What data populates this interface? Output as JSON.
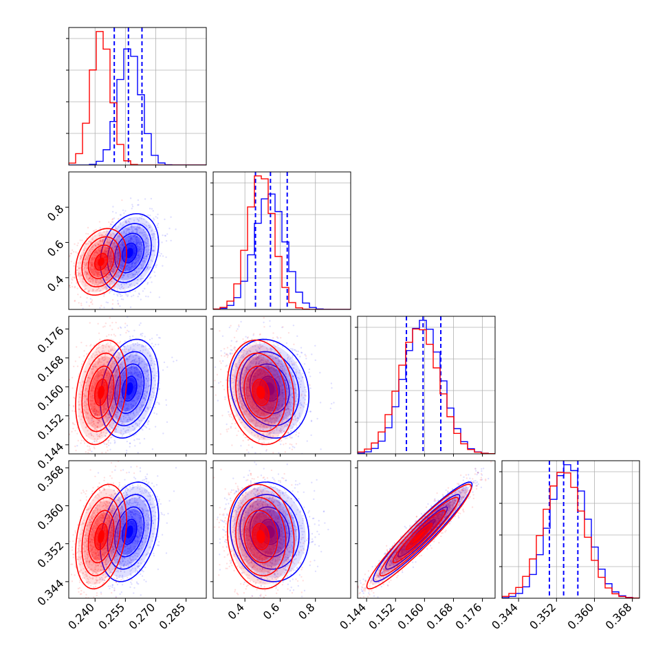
{
  "colors": {
    "series_a": "#ff0000",
    "series_b": "#0000ff",
    "grid": "#b0b0b0",
    "frame": "#000000"
  },
  "chart_data": {
    "type": "corner",
    "title": "",
    "parameters": [
      {
        "range": [
          0.227,
          0.295
        ],
        "ticks": [
          0.24,
          0.255,
          0.27,
          0.285
        ],
        "tick_labels": [
          "0.240",
          "0.255",
          "0.270",
          "0.285"
        ]
      },
      {
        "range": [
          0.22,
          1.0
        ],
        "ticks": [
          0.4,
          0.6,
          0.8
        ],
        "tick_labels": [
          "0.4",
          "0.6",
          "0.8"
        ]
      },
      {
        "range": [
          0.1415,
          0.1795
        ],
        "ticks": [
          0.144,
          0.152,
          0.16,
          0.168,
          0.176
        ],
        "tick_labels": [
          "0.144",
          "0.152",
          "0.160",
          "0.168",
          "0.176"
        ]
      },
      {
        "range": [
          0.3405,
          0.3695
        ],
        "ticks": [
          0.344,
          0.352,
          0.36,
          0.368
        ],
        "tick_labels": [
          "0.344",
          "0.352",
          "0.360",
          "0.368"
        ]
      }
    ],
    "series": [
      {
        "color": "#ff0000",
        "means": [
          0.243,
          0.49,
          0.1585,
          0.3535
        ],
        "sds": [
          0.0048,
          0.072,
          0.0055,
          0.0042
        ]
      },
      {
        "color": "#0000ff",
        "means": [
          0.257,
          0.54,
          0.1595,
          0.3545
        ],
        "sds": [
          0.0055,
          0.085,
          0.0052,
          0.004
        ]
      }
    ],
    "correlations": [
      {
        "pair": [
          0,
          1
        ],
        "rho": 0.25
      },
      {
        "pair": [
          0,
          2
        ],
        "rho": 0.25
      },
      {
        "pair": [
          1,
          2
        ],
        "rho": -0.15
      },
      {
        "pair": [
          0,
          3
        ],
        "rho": 0.3
      },
      {
        "pair": [
          1,
          3
        ],
        "rho": -0.1
      },
      {
        "pair": [
          2,
          3
        ],
        "rho": 0.95
      }
    ],
    "quantile_lines": {
      "color": "#0000ff",
      "values": [
        [
          0.2495,
          0.2565,
          0.2632
        ],
        [
          0.46,
          0.545,
          0.64
        ],
        [
          0.155,
          0.1596,
          0.1645
        ],
        [
          0.3505,
          0.3535,
          0.3565
        ]
      ]
    },
    "contour_levels_sigma": [
      0.5,
      1.0,
      1.5,
      2.0
    ],
    "grid": true,
    "legend": "none"
  }
}
